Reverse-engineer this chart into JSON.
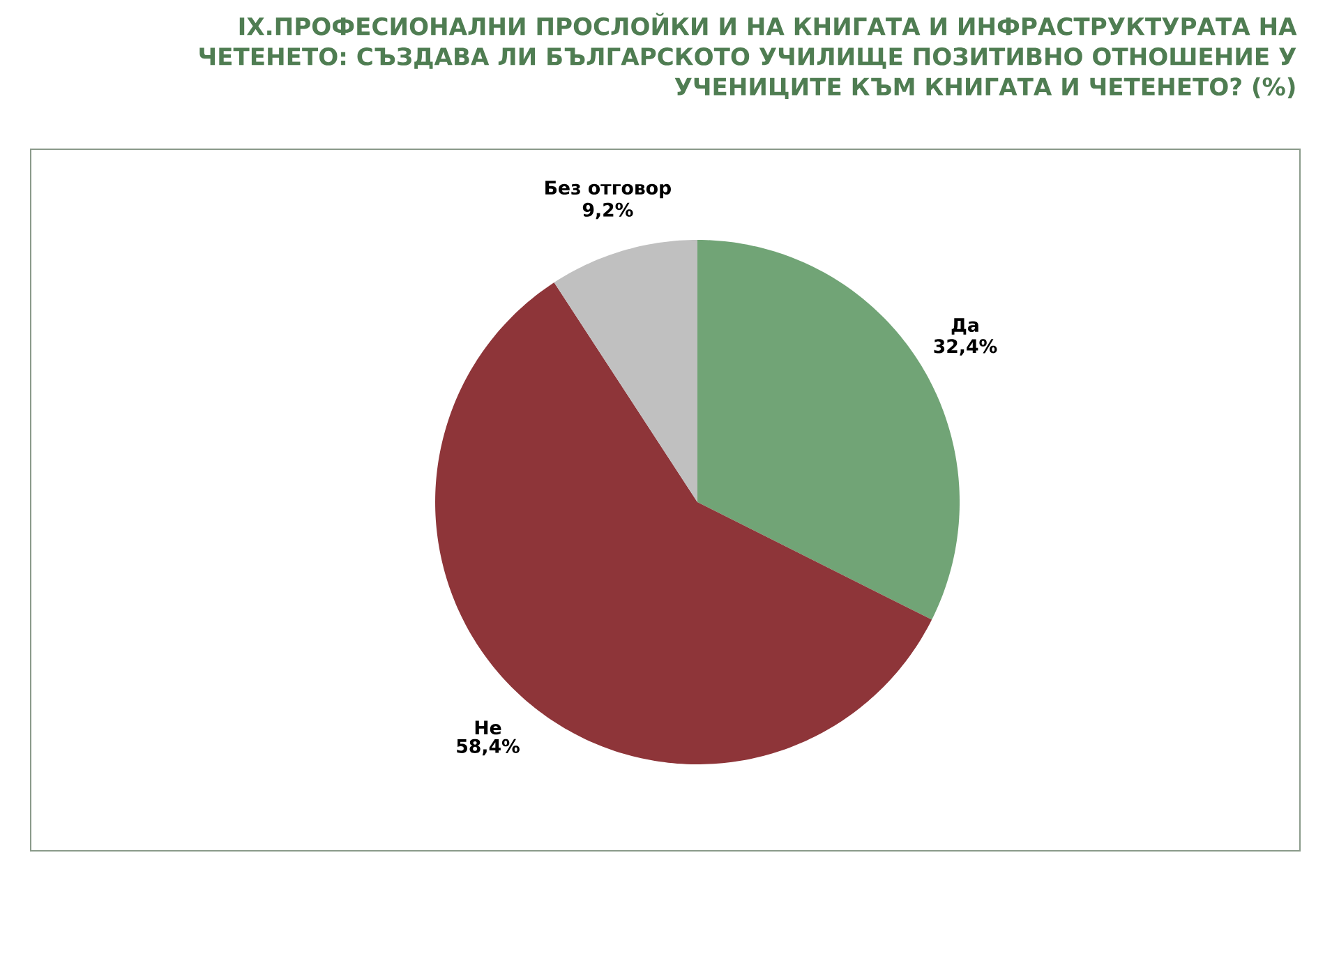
{
  "chart_data": {
    "type": "pie",
    "title": "IX.ПРОФЕСИОНАЛНИ ПРОСЛОЙКИ И НА КНИГАТА И ИНФРАСТРУКТУРАТА НА ЧЕТЕНЕТО:  СЪЗДАВА ЛИ БЪЛГАРСКОТО УЧИЛИЩЕ ПОЗИТИВНО ОТНОШЕНИЕ У УЧЕНИЦИТЕ КЪМ КНИГАТА И ЧЕТЕНЕТО? (%)",
    "categories": [
      "Да",
      "Не",
      "Без отговор"
    ],
    "values": [
      32.4,
      58.4,
      9.2
    ],
    "colors": [
      "#71a476",
      "#8e3539",
      "#c0c0c0"
    ],
    "value_labels": [
      "32,4%",
      "58,4%",
      "9,2%"
    ]
  }
}
